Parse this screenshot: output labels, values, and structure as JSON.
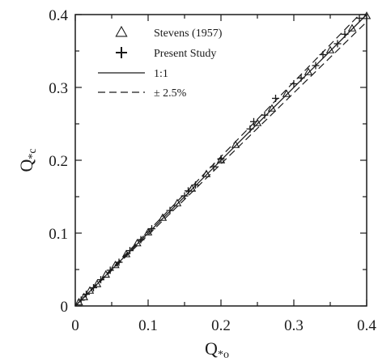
{
  "chart_data": {
    "type": "scatter",
    "title": "",
    "xlabel": "Q*o",
    "ylabel": "Q*c",
    "xlim": [
      0,
      0.4
    ],
    "ylim": [
      0,
      0.4
    ],
    "x_ticks": [
      0,
      0.1,
      0.2,
      0.3,
      0.4
    ],
    "x_tick_labels": [
      "0",
      "0.1",
      "0.2",
      "0.3",
      "0.4"
    ],
    "y_ticks": [
      0,
      0.1,
      0.2,
      0.3,
      0.4
    ],
    "y_tick_labels": [
      "0",
      "0.1",
      "0.2",
      "0.3",
      "0.4"
    ],
    "grid": false,
    "legend_position": "top-left",
    "series": [
      {
        "name": "Stevens (1957)",
        "marker": "triangle",
        "points": [
          [
            0.005,
            0.005
          ],
          [
            0.012,
            0.012
          ],
          [
            0.02,
            0.021
          ],
          [
            0.03,
            0.03
          ],
          [
            0.042,
            0.043
          ],
          [
            0.055,
            0.056
          ],
          [
            0.07,
            0.071
          ],
          [
            0.085,
            0.086
          ],
          [
            0.1,
            0.101
          ],
          [
            0.12,
            0.121
          ],
          [
            0.14,
            0.141
          ],
          [
            0.16,
            0.161
          ],
          [
            0.18,
            0.181
          ],
          [
            0.2,
            0.2
          ],
          [
            0.22,
            0.221
          ],
          [
            0.25,
            0.251
          ],
          [
            0.27,
            0.271
          ],
          [
            0.29,
            0.291
          ],
          [
            0.32,
            0.321
          ],
          [
            0.35,
            0.351
          ],
          [
            0.38,
            0.381
          ],
          [
            0.4,
            0.398
          ]
        ]
      },
      {
        "name": "Present Study",
        "marker": "plus",
        "points": [
          [
            0.008,
            0.008
          ],
          [
            0.015,
            0.016
          ],
          [
            0.025,
            0.025
          ],
          [
            0.035,
            0.036
          ],
          [
            0.048,
            0.049
          ],
          [
            0.06,
            0.06
          ],
          [
            0.075,
            0.076
          ],
          [
            0.09,
            0.091
          ],
          [
            0.105,
            0.106
          ],
          [
            0.13,
            0.131
          ],
          [
            0.15,
            0.151
          ],
          [
            0.155,
            0.158
          ],
          [
            0.165,
            0.166
          ],
          [
            0.19,
            0.191
          ],
          [
            0.2,
            0.202
          ],
          [
            0.24,
            0.243
          ],
          [
            0.245,
            0.253
          ],
          [
            0.26,
            0.262
          ],
          [
            0.275,
            0.285
          ],
          [
            0.3,
            0.305
          ],
          [
            0.31,
            0.313
          ],
          [
            0.33,
            0.33
          ],
          [
            0.34,
            0.345
          ],
          [
            0.36,
            0.36
          ],
          [
            0.37,
            0.373
          ],
          [
            0.39,
            0.395
          ]
        ]
      }
    ],
    "lines": [
      {
        "name": "1:1",
        "style": "solid",
        "slope": 1
      },
      {
        "name": "± 2.5%",
        "style": "dashed",
        "factors": [
          1.025,
          0.975
        ]
      }
    ],
    "legend": [
      {
        "marker": "triangle",
        "label": "Stevens (1957)"
      },
      {
        "marker": "plus",
        "label": "Present Study"
      },
      {
        "marker": "solid-line",
        "label": "1:1"
      },
      {
        "marker": "dashed-line",
        "label": "± 2.5%"
      }
    ]
  }
}
